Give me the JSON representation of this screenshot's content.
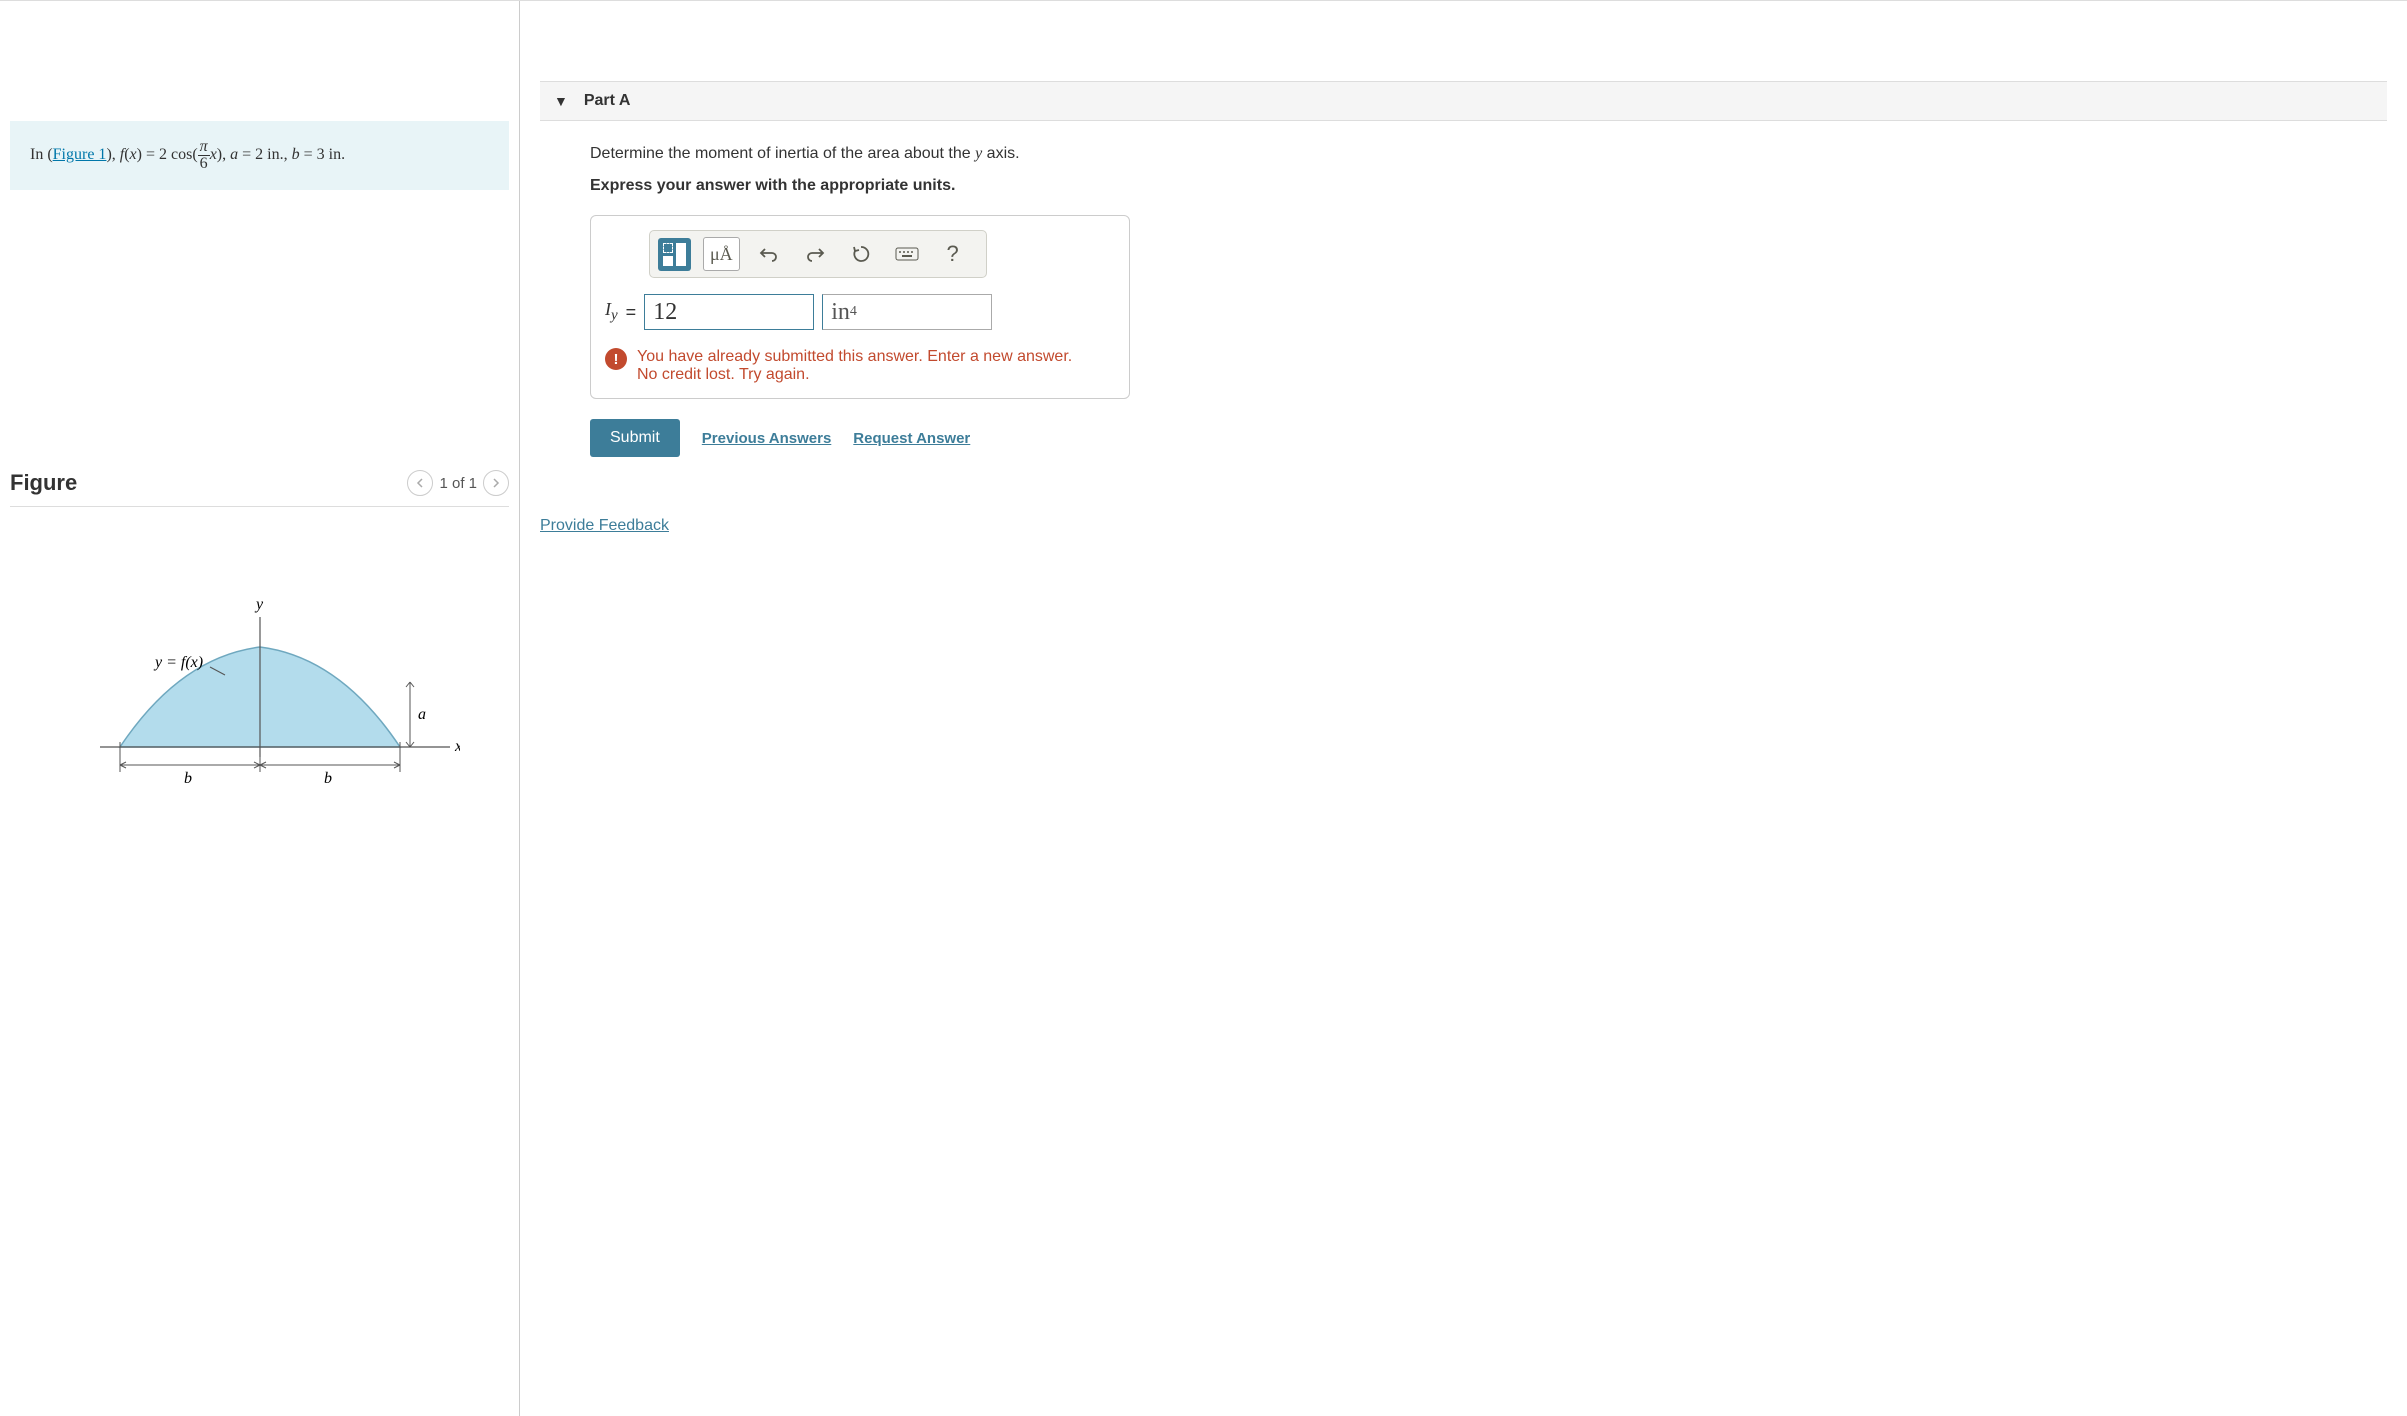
{
  "problem": {
    "prefix": "In (",
    "figure_link": "Figure 1",
    "rest_html": "), <span class='math-i'>f</span>(<span class='math-i'>x</span>) = 2 cos(<span style='display:inline-block;vertical-align:middle;text-align:center;line-height:1;'><span style='display:block;border-bottom:1px solid #333;padding:0 2px;'><span class='math-i'>π</span></span><span style='display:block;'>6</span></span><span class='math-i'>x</span>), <span class='math-i'>a</span> = 2 in., <span class='math-i'>b</span> = 3 in."
  },
  "figure": {
    "title": "Figure",
    "page_label": "1 of 1",
    "diagram": {
      "curve_fill": "#b3dcec",
      "curve_stroke": "#6fa8bf",
      "axis_color": "#555",
      "y_label": "y",
      "x_label": "x",
      "a_label": "a",
      "b_label": "b",
      "fx_label": "y = f(x)"
    }
  },
  "part": {
    "title": "Part A",
    "question_html": "Determine the moment of inertia of the area about the <span class='math-i'>y</span> axis.",
    "instruction": "Express your answer with the appropriate units.",
    "toolbar": {
      "units_label": "μÅ",
      "help_label": "?"
    },
    "answer": {
      "var_html": "I<sub style='font-style:italic'>y</sub>",
      "equals": "=",
      "value": "12",
      "unit_html": "in<sup>4</sup>"
    },
    "feedback": {
      "line1": "You have already submitted this answer. Enter a new answer.",
      "line2": "No credit lost. Try again."
    },
    "actions": {
      "submit": "Submit",
      "previous": "Previous Answers",
      "request": "Request Answer"
    }
  },
  "footer": {
    "provide_feedback": "Provide Feedback"
  }
}
